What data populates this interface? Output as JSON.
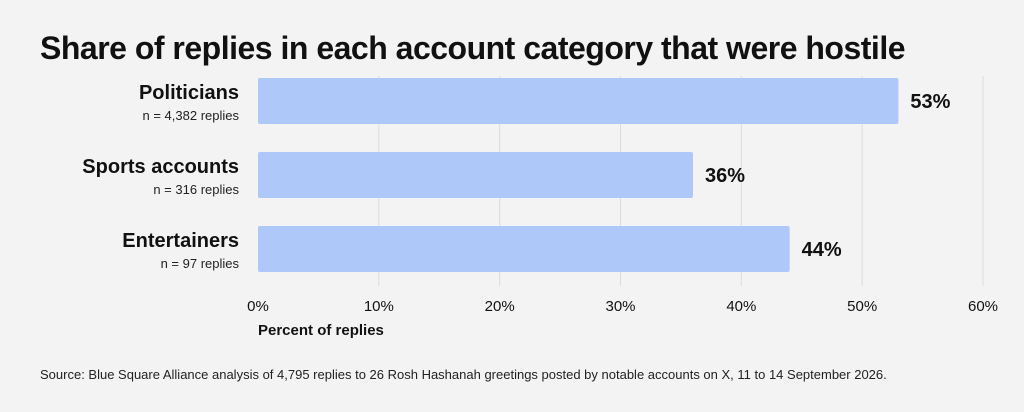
{
  "chart_data": {
    "type": "bar",
    "orientation": "horizontal",
    "title": "Share of replies in each account category that were hostile",
    "categories": [
      "Politicians",
      "Sports accounts",
      "Entertainers"
    ],
    "sublabels": [
      "n = 4,382 replies",
      "n = 316 replies",
      "n = 97 replies"
    ],
    "values": [
      53,
      36,
      44
    ],
    "value_labels": [
      "53%",
      "36%",
      "44%"
    ],
    "xlabel": "Percent of replies",
    "xlim": [
      0,
      60
    ],
    "ticks": [
      0,
      10,
      20,
      30,
      40,
      50,
      60
    ],
    "tick_labels": [
      "0%",
      "10%",
      "20%",
      "30%",
      "40%",
      "50%",
      "60%"
    ],
    "grid": true,
    "legend": "none",
    "bar_color": "#afc8fa",
    "grid_color": "#dcdcdc"
  },
  "source": "Source: Blue Square Alliance analysis of 4,795 replies to 26 Rosh Hashanah greetings posted by notable accounts on X, 11 to 14 September 2026."
}
